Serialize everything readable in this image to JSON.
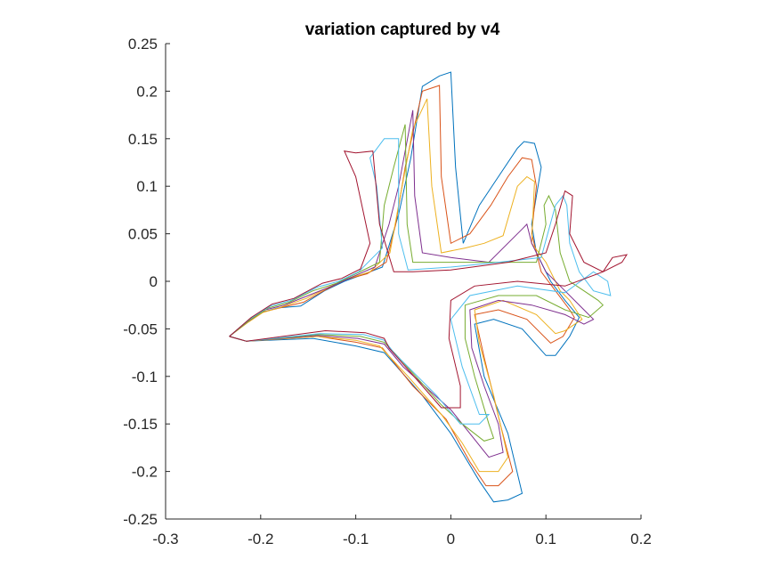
{
  "chart_data": {
    "type": "line",
    "title": "variation captured by v4",
    "xlabel": "",
    "ylabel": "",
    "xlim": [
      -0.3,
      0.2
    ],
    "ylim": [
      -0.25,
      0.25
    ],
    "x_ticks": [
      -0.3,
      -0.2,
      -0.1,
      0,
      0.1,
      0.2
    ],
    "x_tick_labels": [
      "-0.3",
      "-0.2",
      "-0.1",
      "0",
      "0.1",
      "0.2"
    ],
    "y_ticks": [
      -0.25,
      -0.2,
      -0.15,
      -0.1,
      -0.05,
      0,
      0.05,
      0.1,
      0.15,
      0.2,
      0.25
    ],
    "y_tick_labels": [
      "-0.25",
      "-0.2",
      "-0.15",
      "-0.1",
      "-0.05",
      "0",
      "0.05",
      "0.1",
      "0.15",
      "0.2",
      "0.25"
    ],
    "grid": false,
    "legend": "none",
    "series": [
      {
        "color": "#0072BD",
        "points": [
          [
            -0.233,
            -0.058
          ],
          [
            -0.215,
            -0.043
          ],
          [
            -0.2,
            -0.033
          ],
          [
            -0.182,
            -0.028
          ],
          [
            -0.158,
            -0.026
          ],
          [
            -0.133,
            -0.01
          ],
          [
            -0.112,
            0.0
          ],
          [
            -0.093,
            0.007
          ],
          [
            -0.072,
            0.015
          ],
          [
            -0.055,
            0.07
          ],
          [
            -0.042,
            0.13
          ],
          [
            -0.03,
            0.205
          ],
          [
            -0.012,
            0.216
          ],
          [
            0.0,
            0.22
          ],
          [
            0.005,
            0.12
          ],
          [
            0.013,
            0.04
          ],
          [
            0.03,
            0.08
          ],
          [
            0.05,
            0.11
          ],
          [
            0.07,
            0.14
          ],
          [
            0.077,
            0.147
          ],
          [
            0.088,
            0.145
          ],
          [
            0.095,
            0.12
          ],
          [
            0.085,
            0.06
          ],
          [
            0.09,
            0.03
          ],
          [
            0.105,
            0.0
          ],
          [
            0.12,
            -0.02
          ],
          [
            0.135,
            -0.038
          ],
          [
            0.125,
            -0.058
          ],
          [
            0.11,
            -0.078
          ],
          [
            0.1,
            -0.078
          ],
          [
            0.075,
            -0.05
          ],
          [
            0.045,
            -0.04
          ],
          [
            0.025,
            -0.045
          ],
          [
            0.035,
            -0.1
          ],
          [
            0.06,
            -0.16
          ],
          [
            0.075,
            -0.223
          ],
          [
            0.06,
            -0.23
          ],
          [
            0.045,
            -0.232
          ],
          [
            0.03,
            -0.21
          ],
          [
            0.0,
            -0.16
          ],
          [
            -0.03,
            -0.12
          ],
          [
            -0.07,
            -0.075
          ],
          [
            -0.1,
            -0.068
          ],
          [
            -0.145,
            -0.06
          ],
          [
            -0.215,
            -0.063
          ],
          [
            -0.233,
            -0.058
          ]
        ]
      },
      {
        "color": "#D95319",
        "points": [
          [
            -0.233,
            -0.058
          ],
          [
            -0.215,
            -0.043
          ],
          [
            -0.2,
            -0.033
          ],
          [
            -0.18,
            -0.028
          ],
          [
            -0.155,
            -0.022
          ],
          [
            -0.13,
            -0.008
          ],
          [
            -0.11,
            0.002
          ],
          [
            -0.088,
            0.008
          ],
          [
            -0.068,
            0.02
          ],
          [
            -0.058,
            0.06
          ],
          [
            -0.048,
            0.12
          ],
          [
            -0.03,
            0.2
          ],
          [
            -0.012,
            0.206
          ],
          [
            -0.01,
            0.11
          ],
          [
            0.0,
            0.04
          ],
          [
            0.02,
            0.05
          ],
          [
            0.042,
            0.08
          ],
          [
            0.06,
            0.11
          ],
          [
            0.075,
            0.13
          ],
          [
            0.085,
            0.128
          ],
          [
            0.09,
            0.1
          ],
          [
            0.085,
            0.05
          ],
          [
            0.095,
            0.01
          ],
          [
            0.11,
            -0.01
          ],
          [
            0.125,
            -0.03
          ],
          [
            0.13,
            -0.038
          ],
          [
            0.118,
            -0.058
          ],
          [
            0.105,
            -0.065
          ],
          [
            0.08,
            -0.04
          ],
          [
            0.05,
            -0.03
          ],
          [
            0.025,
            -0.035
          ],
          [
            0.035,
            -0.08
          ],
          [
            0.052,
            -0.15
          ],
          [
            0.065,
            -0.2
          ],
          [
            0.05,
            -0.215
          ],
          [
            0.037,
            -0.215
          ],
          [
            0.02,
            -0.19
          ],
          [
            -0.005,
            -0.145
          ],
          [
            -0.04,
            -0.11
          ],
          [
            -0.072,
            -0.07
          ],
          [
            -0.1,
            -0.064
          ],
          [
            -0.14,
            -0.058
          ],
          [
            -0.215,
            -0.063
          ],
          [
            -0.233,
            -0.058
          ]
        ]
      },
      {
        "color": "#EDB120",
        "points": [
          [
            -0.233,
            -0.058
          ],
          [
            -0.213,
            -0.043
          ],
          [
            -0.198,
            -0.033
          ],
          [
            -0.178,
            -0.027
          ],
          [
            -0.152,
            -0.018
          ],
          [
            -0.128,
            -0.006
          ],
          [
            -0.108,
            0.003
          ],
          [
            -0.085,
            0.01
          ],
          [
            -0.064,
            0.03
          ],
          [
            -0.055,
            0.08
          ],
          [
            -0.04,
            0.16
          ],
          [
            -0.025,
            0.192
          ],
          [
            -0.02,
            0.1
          ],
          [
            -0.01,
            0.03
          ],
          [
            0.015,
            0.035
          ],
          [
            0.035,
            0.04
          ],
          [
            0.055,
            0.048
          ],
          [
            0.07,
            0.1
          ],
          [
            0.08,
            0.11
          ],
          [
            0.088,
            0.105
          ],
          [
            0.085,
            0.04
          ],
          [
            0.1,
            0.02
          ],
          [
            0.115,
            -0.01
          ],
          [
            0.125,
            -0.02
          ],
          [
            0.138,
            -0.04
          ],
          [
            0.12,
            -0.052
          ],
          [
            0.11,
            -0.055
          ],
          [
            0.09,
            -0.035
          ],
          [
            0.055,
            -0.02
          ],
          [
            0.025,
            -0.03
          ],
          [
            0.03,
            -0.065
          ],
          [
            0.045,
            -0.12
          ],
          [
            0.06,
            -0.185
          ],
          [
            0.05,
            -0.2
          ],
          [
            0.03,
            -0.2
          ],
          [
            0.012,
            -0.17
          ],
          [
            -0.01,
            -0.14
          ],
          [
            -0.045,
            -0.1
          ],
          [
            -0.075,
            -0.068
          ],
          [
            -0.1,
            -0.062
          ],
          [
            -0.14,
            -0.058
          ],
          [
            -0.215,
            -0.063
          ],
          [
            -0.233,
            -0.058
          ]
        ]
      },
      {
        "color": "#7E2F8E",
        "points": [
          [
            -0.233,
            -0.058
          ],
          [
            -0.213,
            -0.042
          ],
          [
            -0.195,
            -0.03
          ],
          [
            -0.175,
            -0.025
          ],
          [
            -0.15,
            -0.015
          ],
          [
            -0.125,
            -0.005
          ],
          [
            -0.103,
            0.005
          ],
          [
            -0.08,
            0.015
          ],
          [
            -0.065,
            0.06
          ],
          [
            -0.055,
            0.1
          ],
          [
            -0.04,
            0.18
          ],
          [
            -0.038,
            0.09
          ],
          [
            -0.03,
            0.03
          ],
          [
            0.0,
            0.025
          ],
          [
            0.04,
            0.02
          ],
          [
            0.075,
            0.055
          ],
          [
            0.08,
            0.06
          ],
          [
            0.085,
            0.04
          ],
          [
            0.1,
            0.01
          ],
          [
            0.12,
            -0.01
          ],
          [
            0.14,
            -0.03
          ],
          [
            0.15,
            -0.04
          ],
          [
            0.14,
            -0.045
          ],
          [
            0.12,
            -0.035
          ],
          [
            0.085,
            -0.025
          ],
          [
            0.05,
            -0.02
          ],
          [
            0.02,
            -0.03
          ],
          [
            0.022,
            -0.07
          ],
          [
            0.035,
            -0.11
          ],
          [
            0.05,
            -0.15
          ],
          [
            0.055,
            -0.18
          ],
          [
            0.04,
            -0.185
          ],
          [
            0.02,
            -0.16
          ],
          [
            0.0,
            -0.135
          ],
          [
            -0.05,
            -0.09
          ],
          [
            -0.07,
            -0.066
          ],
          [
            -0.098,
            -0.06
          ],
          [
            -0.14,
            -0.057
          ],
          [
            -0.215,
            -0.063
          ],
          [
            -0.233,
            -0.058
          ]
        ]
      },
      {
        "color": "#77AC30",
        "points": [
          [
            -0.233,
            -0.058
          ],
          [
            -0.212,
            -0.041
          ],
          [
            -0.192,
            -0.028
          ],
          [
            -0.17,
            -0.022
          ],
          [
            -0.145,
            -0.01
          ],
          [
            -0.12,
            -0.002
          ],
          [
            -0.1,
            0.008
          ],
          [
            -0.075,
            0.02
          ],
          [
            -0.07,
            0.08
          ],
          [
            -0.06,
            0.12
          ],
          [
            -0.048,
            0.165
          ],
          [
            -0.046,
            0.06
          ],
          [
            -0.04,
            0.02
          ],
          [
            0.0,
            0.02
          ],
          [
            0.045,
            0.02
          ],
          [
            0.09,
            0.02
          ],
          [
            0.1,
            0.06
          ],
          [
            0.098,
            0.08
          ],
          [
            0.103,
            0.09
          ],
          [
            0.11,
            0.075
          ],
          [
            0.115,
            0.03
          ],
          [
            0.125,
            0.0
          ],
          [
            0.14,
            -0.01
          ],
          [
            0.155,
            -0.02
          ],
          [
            0.16,
            -0.025
          ],
          [
            0.145,
            -0.038
          ],
          [
            0.12,
            -0.03
          ],
          [
            0.09,
            -0.015
          ],
          [
            0.05,
            -0.015
          ],
          [
            0.015,
            -0.025
          ],
          [
            0.015,
            -0.06
          ],
          [
            0.025,
            -0.1
          ],
          [
            0.04,
            -0.15
          ],
          [
            0.045,
            -0.165
          ],
          [
            0.035,
            -0.168
          ],
          [
            0.012,
            -0.15
          ],
          [
            -0.01,
            -0.13
          ],
          [
            -0.055,
            -0.08
          ],
          [
            -0.07,
            -0.064
          ],
          [
            -0.095,
            -0.058
          ],
          [
            -0.14,
            -0.056
          ],
          [
            -0.215,
            -0.063
          ],
          [
            -0.233,
            -0.058
          ]
        ]
      },
      {
        "color": "#4DBEEE",
        "points": [
          [
            -0.233,
            -0.058
          ],
          [
            -0.212,
            -0.04
          ],
          [
            -0.19,
            -0.026
          ],
          [
            -0.168,
            -0.02
          ],
          [
            -0.14,
            -0.006
          ],
          [
            -0.118,
            0.0
          ],
          [
            -0.097,
            0.01
          ],
          [
            -0.072,
            0.035
          ],
          [
            -0.078,
            0.1
          ],
          [
            -0.085,
            0.13
          ],
          [
            -0.07,
            0.15
          ],
          [
            -0.055,
            0.15
          ],
          [
            -0.055,
            0.05
          ],
          [
            -0.045,
            0.012
          ],
          [
            0.0,
            0.015
          ],
          [
            0.05,
            0.02
          ],
          [
            0.095,
            0.025
          ],
          [
            0.11,
            0.08
          ],
          [
            0.118,
            0.09
          ],
          [
            0.122,
            0.08
          ],
          [
            0.125,
            0.04
          ],
          [
            0.135,
            0.01
          ],
          [
            0.15,
            -0.01
          ],
          [
            0.168,
            -0.015
          ],
          [
            0.165,
            0.0
          ],
          [
            0.15,
            0.01
          ],
          [
            0.12,
            -0.012
          ],
          [
            0.07,
            -0.005
          ],
          [
            0.02,
            -0.015
          ],
          [
            0.0,
            -0.04
          ],
          [
            0.012,
            -0.09
          ],
          [
            0.03,
            -0.14
          ],
          [
            0.04,
            -0.14
          ],
          [
            0.03,
            -0.15
          ],
          [
            0.01,
            -0.15
          ],
          [
            -0.015,
            -0.12
          ],
          [
            -0.06,
            -0.075
          ],
          [
            -0.07,
            -0.062
          ],
          [
            -0.092,
            -0.056
          ],
          [
            -0.138,
            -0.055
          ],
          [
            -0.215,
            -0.063
          ],
          [
            -0.233,
            -0.058
          ]
        ]
      },
      {
        "color": "#A2142F",
        "points": [
          [
            -0.233,
            -0.058
          ],
          [
            -0.21,
            -0.038
          ],
          [
            -0.188,
            -0.024
          ],
          [
            -0.165,
            -0.018
          ],
          [
            -0.135,
            -0.002
          ],
          [
            -0.115,
            0.003
          ],
          [
            -0.095,
            0.013
          ],
          [
            -0.085,
            0.04
          ],
          [
            -0.1,
            0.11
          ],
          [
            -0.112,
            0.137
          ],
          [
            -0.1,
            0.135
          ],
          [
            -0.082,
            0.137
          ],
          [
            -0.075,
            0.06
          ],
          [
            -0.06,
            0.01
          ],
          [
            -0.04,
            0.01
          ],
          [
            0.0,
            0.012
          ],
          [
            0.06,
            0.02
          ],
          [
            0.1,
            0.03
          ],
          [
            0.11,
            0.06
          ],
          [
            0.12,
            0.095
          ],
          [
            0.128,
            0.09
          ],
          [
            0.125,
            0.05
          ],
          [
            0.14,
            0.02
          ],
          [
            0.16,
            0.01
          ],
          [
            0.18,
            0.02
          ],
          [
            0.185,
            0.028
          ],
          [
            0.17,
            0.025
          ],
          [
            0.16,
            0.01
          ],
          [
            0.12,
            -0.005
          ],
          [
            0.07,
            0.0
          ],
          [
            0.025,
            -0.005
          ],
          [
            0.0,
            -0.02
          ],
          [
            -0.002,
            -0.06
          ],
          [
            0.01,
            -0.11
          ],
          [
            0.01,
            -0.133
          ],
          [
            -0.01,
            -0.133
          ],
          [
            -0.03,
            -0.11
          ],
          [
            -0.065,
            -0.07
          ],
          [
            -0.07,
            -0.06
          ],
          [
            -0.09,
            -0.054
          ],
          [
            -0.132,
            -0.052
          ],
          [
            -0.215,
            -0.063
          ],
          [
            -0.233,
            -0.058
          ]
        ]
      }
    ]
  }
}
